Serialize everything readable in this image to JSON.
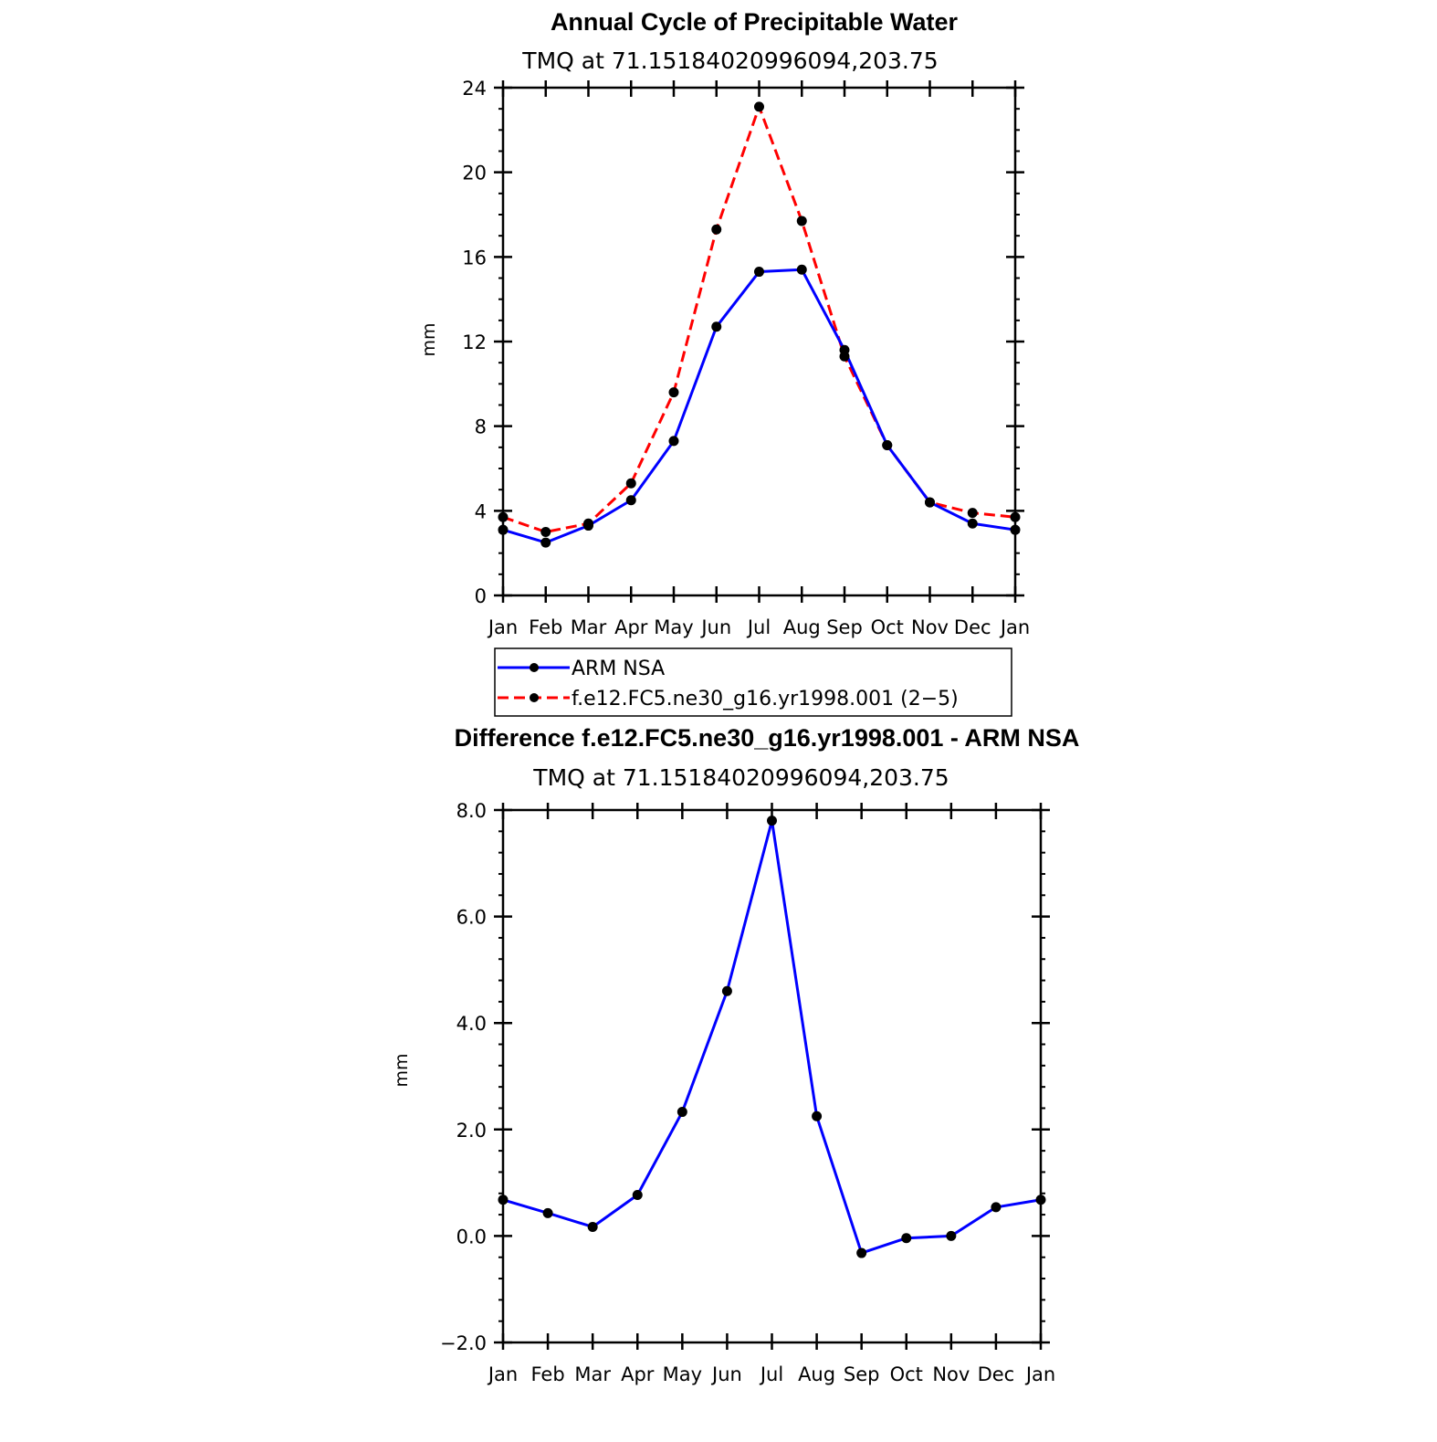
{
  "chart_data": [
    {
      "type": "line",
      "title": "Annual Cycle of Precipitable Water",
      "subtitle": "TMQ at 71.15184020996094,203.75",
      "ylabel": "mm",
      "xlabel": "",
      "categories": [
        "Jan",
        "Feb",
        "Mar",
        "Apr",
        "May",
        "Jun",
        "Jul",
        "Aug",
        "Sep",
        "Oct",
        "Nov",
        "Dec",
        "Jan"
      ],
      "ylim": [
        0,
        24
      ],
      "yticks": [
        "0",
        "4",
        "8",
        "12",
        "16",
        "20",
        "24"
      ],
      "ytick_values": [
        0,
        4,
        8,
        12,
        16,
        20,
        24
      ],
      "series": [
        {
          "name": "ARM NSA",
          "color": "#0000ff",
          "dash": "solid",
          "values": [
            3.1,
            2.5,
            3.3,
            4.5,
            7.3,
            12.7,
            15.3,
            15.4,
            11.6,
            7.1,
            4.4,
            3.4,
            3.1
          ]
        },
        {
          "name": "f.e12.FC5.ne30_g16.yr1998.001 (2−5)",
          "color": "#ff0000",
          "dash": "dashed",
          "values": [
            3.7,
            3.0,
            3.4,
            5.3,
            9.6,
            17.3,
            23.1,
            17.7,
            11.3,
            7.1,
            4.4,
            3.9,
            3.7
          ]
        }
      ],
      "legend": [
        "ARM NSA",
        "f.e12.FC5.ne30_g16.yr1998.001 (2−5)"
      ]
    },
    {
      "type": "line",
      "title": "Difference f.e12.FC5.ne30_g16.yr1998.001 - ARM NSA",
      "subtitle": "TMQ at 71.15184020996094,203.75",
      "ylabel": "mm",
      "xlabel": "",
      "categories": [
        "Jan",
        "Feb",
        "Mar",
        "Apr",
        "May",
        "Jun",
        "Jul",
        "Aug",
        "Sep",
        "Oct",
        "Nov",
        "Dec",
        "Jan"
      ],
      "ylim": [
        -2.0,
        8.0
      ],
      "yticks": [
        "−2.0",
        "0.0",
        "2.0",
        "4.0",
        "6.0",
        "8.0"
      ],
      "ytick_values": [
        -2,
        0,
        2,
        4,
        6,
        8
      ],
      "series": [
        {
          "name": "Difference",
          "color": "#0000ff",
          "dash": "solid",
          "values": [
            0.68,
            0.43,
            0.17,
            0.77,
            2.33,
            4.6,
            7.8,
            2.25,
            -0.32,
            -0.04,
            0.0,
            0.54,
            0.68
          ]
        }
      ]
    }
  ]
}
